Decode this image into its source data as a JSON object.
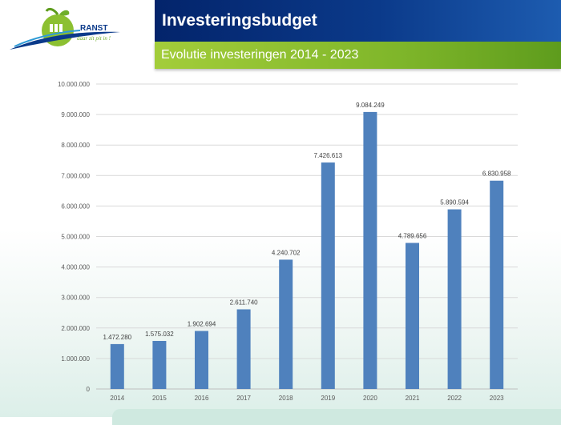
{
  "header": {
    "title": "Investeringsbudget",
    "subtitle": "Evolutie investeringen 2014 - 2023"
  },
  "logo": {
    "text": "RANST",
    "tagline": "daar zit pit in !"
  },
  "colors": {
    "title_bar": "#0b3a8a",
    "subtitle_bar": "#8cc031",
    "bar": "#4f81bd",
    "gridline": "#d9d9d9"
  },
  "chart_data": {
    "type": "bar",
    "categories": [
      "2014",
      "2015",
      "2016",
      "2017",
      "2018",
      "2019",
      "2020",
      "2021",
      "2022",
      "2023"
    ],
    "values": [
      1472280,
      1575032,
      1902694,
      2611740,
      4240702,
      7426613,
      9084249,
      4789656,
      5890594,
      6830958
    ],
    "value_labels": [
      "1.472.280",
      "1.575.032",
      "1.902.694",
      "2.611.740",
      "4.240.702",
      "7.426.613",
      "9.084.249",
      "4.789.656",
      "5.890.594",
      "6.830.958"
    ],
    "ylim": [
      0,
      10000000
    ],
    "yticks": [
      0,
      1000000,
      2000000,
      3000000,
      4000000,
      5000000,
      6000000,
      7000000,
      8000000,
      9000000,
      10000000
    ],
    "ytick_labels": [
      "0",
      "1.000.000",
      "2.000.000",
      "3.000.000",
      "4.000.000",
      "5.000.000",
      "6.000.000",
      "7.000.000",
      "8.000.000",
      "9.000.000",
      "10.000.000"
    ],
    "grid": true,
    "legend": "none"
  }
}
